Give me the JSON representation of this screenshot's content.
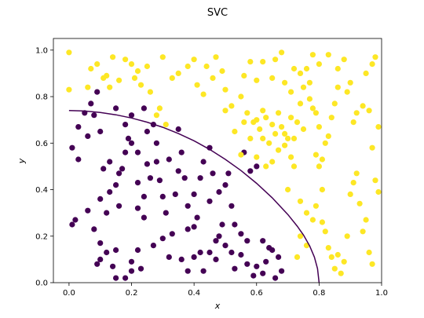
{
  "chart_data": {
    "type": "scatter",
    "title": "SVC",
    "xlabel": "x",
    "ylabel": "y",
    "xlim": [
      -0.05,
      1.0
    ],
    "ylim": [
      0.0,
      1.05
    ],
    "xticks": [
      "0.0",
      "0.2",
      "0.4",
      "0.6",
      "0.8",
      "1.0"
    ],
    "yticks": [
      "0.0",
      "0.2",
      "0.4",
      "0.6",
      "0.8",
      "1.0"
    ],
    "grid": false,
    "legend": false,
    "class_colors": {
      "class0": "#440154",
      "class1": "#fde725"
    },
    "boundary_color": "#440154",
    "series": [
      {
        "class": 0,
        "points": [
          [
            0.01,
            0.25
          ],
          [
            0.01,
            0.58
          ],
          [
            0.02,
            0.27
          ],
          [
            0.03,
            0.53
          ],
          [
            0.03,
            0.67
          ],
          [
            0.05,
            0.73
          ],
          [
            0.06,
            0.63
          ],
          [
            0.07,
            0.77
          ],
          [
            0.08,
            0.72
          ],
          [
            0.1,
            0.65
          ],
          [
            0.11,
            0.49
          ],
          [
            0.12,
            0.3
          ],
          [
            0.1,
            0.17
          ],
          [
            0.12,
            0.13
          ],
          [
            0.14,
            0.07
          ],
          [
            0.15,
            0.14
          ],
          [
            0.13,
            0.39
          ],
          [
            0.16,
            0.47
          ],
          [
            0.16,
            0.33
          ],
          [
            0.17,
            0.49
          ],
          [
            0.18,
            0.56
          ],
          [
            0.18,
            0.68
          ],
          [
            0.2,
            0.72
          ],
          [
            0.19,
            0.62
          ],
          [
            0.22,
            0.43
          ],
          [
            0.22,
            0.32
          ],
          [
            0.24,
            0.37
          ],
          [
            0.24,
            0.28
          ],
          [
            0.25,
            0.51
          ],
          [
            0.26,
            0.45
          ],
          [
            0.25,
            0.65
          ],
          [
            0.27,
            0.68
          ],
          [
            0.28,
            0.6
          ],
          [
            0.29,
            0.44
          ],
          [
            0.3,
            0.37
          ],
          [
            0.31,
            0.3
          ],
          [
            0.3,
            0.19
          ],
          [
            0.33,
            0.21
          ],
          [
            0.34,
            0.38
          ],
          [
            0.35,
            0.66
          ],
          [
            0.36,
            0.56
          ],
          [
            0.37,
            0.45
          ],
          [
            0.38,
            0.33
          ],
          [
            0.4,
            0.38
          ],
          [
            0.41,
            0.28
          ],
          [
            0.42,
            0.45
          ],
          [
            0.43,
            0.52
          ],
          [
            0.45,
            0.35
          ],
          [
            0.46,
            0.47
          ],
          [
            0.48,
            0.39
          ],
          [
            0.5,
            0.42
          ],
          [
            0.51,
            0.47
          ],
          [
            0.52,
            0.33
          ],
          [
            0.53,
            0.25
          ],
          [
            0.55,
            0.21
          ],
          [
            0.57,
            0.18
          ],
          [
            0.2,
            0.09
          ],
          [
            0.22,
            0.14
          ],
          [
            0.18,
            0.02
          ],
          [
            0.15,
            0.02
          ],
          [
            0.2,
            0.05
          ],
          [
            0.23,
            0.06
          ],
          [
            0.1,
            0.1
          ],
          [
            0.09,
            0.08
          ],
          [
            0.36,
            0.1
          ],
          [
            0.38,
            0.05
          ],
          [
            0.4,
            0.11
          ],
          [
            0.42,
            0.13
          ],
          [
            0.43,
            0.05
          ],
          [
            0.45,
            0.13
          ],
          [
            0.47,
            0.1
          ],
          [
            0.5,
            0.16
          ],
          [
            0.53,
            0.06
          ],
          [
            0.55,
            0.12
          ],
          [
            0.57,
            0.08
          ],
          [
            0.59,
            0.03
          ],
          [
            0.6,
            0.07
          ],
          [
            0.62,
            0.04
          ],
          [
            0.63,
            0.09
          ],
          [
            0.65,
            0.14
          ],
          [
            0.66,
            0.02
          ],
          [
            0.68,
            0.05
          ],
          [
            0.38,
            0.23
          ],
          [
            0.4,
            0.24
          ],
          [
            0.47,
            0.18
          ],
          [
            0.49,
            0.25
          ],
          [
            0.58,
            0.48
          ],
          [
            0.6,
            0.5
          ],
          [
            0.56,
            0.56
          ],
          [
            0.45,
            0.58
          ],
          [
            0.35,
            0.48
          ],
          [
            0.32,
            0.53
          ],
          [
            0.28,
            0.52
          ],
          [
            0.22,
            0.56
          ],
          [
            0.13,
            0.52
          ],
          [
            0.1,
            0.36
          ],
          [
            0.08,
            0.23
          ],
          [
            0.06,
            0.31
          ],
          [
            0.15,
            0.42
          ],
          [
            0.27,
            0.16
          ],
          [
            0.32,
            0.11
          ],
          [
            0.48,
            0.2
          ],
          [
            0.52,
            0.13
          ],
          [
            0.62,
            0.18
          ],
          [
            0.64,
            0.15
          ],
          [
            0.67,
            0.11
          ],
          [
            0.24,
            0.75
          ],
          [
            0.15,
            0.75
          ],
          [
            0.2,
            0.6
          ],
          [
            0.09,
            0.82
          ]
        ]
      },
      {
        "class": 1,
        "points": [
          [
            0.0,
            0.99
          ],
          [
            0.0,
            0.83
          ],
          [
            0.06,
            0.84
          ],
          [
            0.07,
            0.92
          ],
          [
            0.09,
            0.94
          ],
          [
            0.11,
            0.88
          ],
          [
            0.12,
            0.89
          ],
          [
            0.13,
            0.84
          ],
          [
            0.16,
            0.87
          ],
          [
            0.18,
            0.96
          ],
          [
            0.2,
            0.94
          ],
          [
            0.21,
            0.88
          ],
          [
            0.22,
            0.91
          ],
          [
            0.23,
            0.85
          ],
          [
            0.26,
            0.82
          ],
          [
            0.28,
            0.72
          ],
          [
            0.29,
            0.75
          ],
          [
            0.31,
            0.68
          ],
          [
            0.33,
            0.88
          ],
          [
            0.35,
            0.9
          ],
          [
            0.38,
            0.93
          ],
          [
            0.41,
            0.85
          ],
          [
            0.43,
            0.81
          ],
          [
            0.46,
            0.88
          ],
          [
            0.47,
            0.97
          ],
          [
            0.49,
            0.91
          ],
          [
            0.5,
            0.83
          ],
          [
            0.52,
            0.76
          ],
          [
            0.53,
            0.65
          ],
          [
            0.55,
            0.8
          ],
          [
            0.56,
            0.89
          ],
          [
            0.58,
            0.95
          ],
          [
            0.59,
            0.69
          ],
          [
            0.6,
            0.7
          ],
          [
            0.61,
            0.66
          ],
          [
            0.62,
            0.62
          ],
          [
            0.63,
            0.71
          ],
          [
            0.64,
            0.6
          ],
          [
            0.65,
            0.68
          ],
          [
            0.66,
            0.64
          ],
          [
            0.67,
            0.73
          ],
          [
            0.68,
            0.67
          ],
          [
            0.69,
            0.59
          ],
          [
            0.7,
            0.62
          ],
          [
            0.71,
            0.54
          ],
          [
            0.72,
            0.5
          ],
          [
            0.74,
            0.77
          ],
          [
            0.74,
            0.9
          ],
          [
            0.75,
            0.84
          ],
          [
            0.76,
            0.92
          ],
          [
            0.77,
            0.86
          ],
          [
            0.77,
            0.79
          ],
          [
            0.78,
            0.75
          ],
          [
            0.79,
            0.55
          ],
          [
            0.8,
            0.5
          ],
          [
            0.81,
            0.4
          ],
          [
            0.81,
            0.26
          ],
          [
            0.82,
            0.22
          ],
          [
            0.83,
            0.15
          ],
          [
            0.84,
            0.11
          ],
          [
            0.85,
            0.06
          ],
          [
            0.86,
            0.12
          ],
          [
            0.87,
            0.04
          ],
          [
            0.88,
            0.09
          ],
          [
            0.89,
            0.2
          ],
          [
            0.9,
            0.38
          ],
          [
            0.91,
            0.43
          ],
          [
            0.92,
            0.47
          ],
          [
            0.93,
            0.34
          ],
          [
            0.94,
            0.22
          ],
          [
            0.95,
            0.27
          ],
          [
            0.96,
            0.13
          ],
          [
            0.97,
            0.08
          ],
          [
            0.98,
            0.44
          ],
          [
            0.99,
            0.39
          ],
          [
            0.99,
            0.67
          ],
          [
            0.97,
            0.58
          ],
          [
            0.96,
            0.74
          ],
          [
            0.94,
            0.76
          ],
          [
            0.92,
            0.73
          ],
          [
            0.91,
            0.69
          ],
          [
            0.9,
            0.86
          ],
          [
            0.89,
            0.82
          ],
          [
            0.88,
            0.96
          ],
          [
            0.86,
            0.84
          ],
          [
            0.85,
            0.77
          ],
          [
            0.84,
            0.71
          ],
          [
            0.83,
            0.63
          ],
          [
            0.82,
            0.6
          ],
          [
            0.8,
            0.67
          ],
          [
            0.79,
            0.73
          ],
          [
            0.75,
            0.66
          ],
          [
            0.73,
            0.69
          ],
          [
            0.71,
            0.71
          ],
          [
            0.69,
            0.64
          ],
          [
            0.67,
            0.57
          ],
          [
            0.65,
            0.52
          ],
          [
            0.63,
            0.5
          ],
          [
            0.6,
            0.54
          ],
          [
            0.7,
            0.4
          ],
          [
            0.74,
            0.35
          ],
          [
            0.76,
            0.3
          ],
          [
            0.78,
            0.27
          ],
          [
            0.74,
            0.2
          ],
          [
            0.76,
            0.16
          ],
          [
            0.73,
            0.11
          ],
          [
            0.79,
            0.33
          ],
          [
            0.55,
            0.55
          ],
          [
            0.58,
            0.62
          ],
          [
            0.57,
            0.73
          ],
          [
            0.62,
            0.95
          ],
          [
            0.66,
            0.96
          ],
          [
            0.68,
            0.99
          ],
          [
            0.72,
            0.92
          ],
          [
            0.71,
            0.82
          ],
          [
            0.69,
            0.86
          ],
          [
            0.65,
            0.88
          ],
          [
            0.6,
            0.87
          ],
          [
            0.95,
            0.9
          ],
          [
            0.97,
            0.94
          ],
          [
            0.98,
            0.97
          ],
          [
            0.86,
            0.92
          ],
          [
            0.83,
            0.98
          ],
          [
            0.8,
            0.94
          ],
          [
            0.78,
            0.98
          ],
          [
            0.4,
            0.96
          ],
          [
            0.44,
            0.93
          ],
          [
            0.3,
            0.97
          ],
          [
            0.25,
            0.93
          ],
          [
            0.14,
            0.97
          ],
          [
            0.5,
            0.74
          ],
          [
            0.56,
            0.69
          ],
          [
            0.62,
            0.74
          ],
          [
            0.72,
            0.62
          ],
          [
            0.81,
            0.53
          ]
        ]
      }
    ],
    "boundary": [
      [
        0.0,
        0.74
      ],
      [
        0.05,
        0.738
      ],
      [
        0.1,
        0.732
      ],
      [
        0.15,
        0.722
      ],
      [
        0.2,
        0.708
      ],
      [
        0.25,
        0.69
      ],
      [
        0.3,
        0.668
      ],
      [
        0.35,
        0.641
      ],
      [
        0.4,
        0.61
      ],
      [
        0.45,
        0.573
      ],
      [
        0.5,
        0.53
      ],
      [
        0.55,
        0.482
      ],
      [
        0.6,
        0.427
      ],
      [
        0.65,
        0.365
      ],
      [
        0.7,
        0.293
      ],
      [
        0.73,
        0.243
      ],
      [
        0.75,
        0.205
      ],
      [
        0.77,
        0.158
      ],
      [
        0.785,
        0.11
      ],
      [
        0.795,
        0.06
      ],
      [
        0.8,
        0.0
      ]
    ]
  }
}
